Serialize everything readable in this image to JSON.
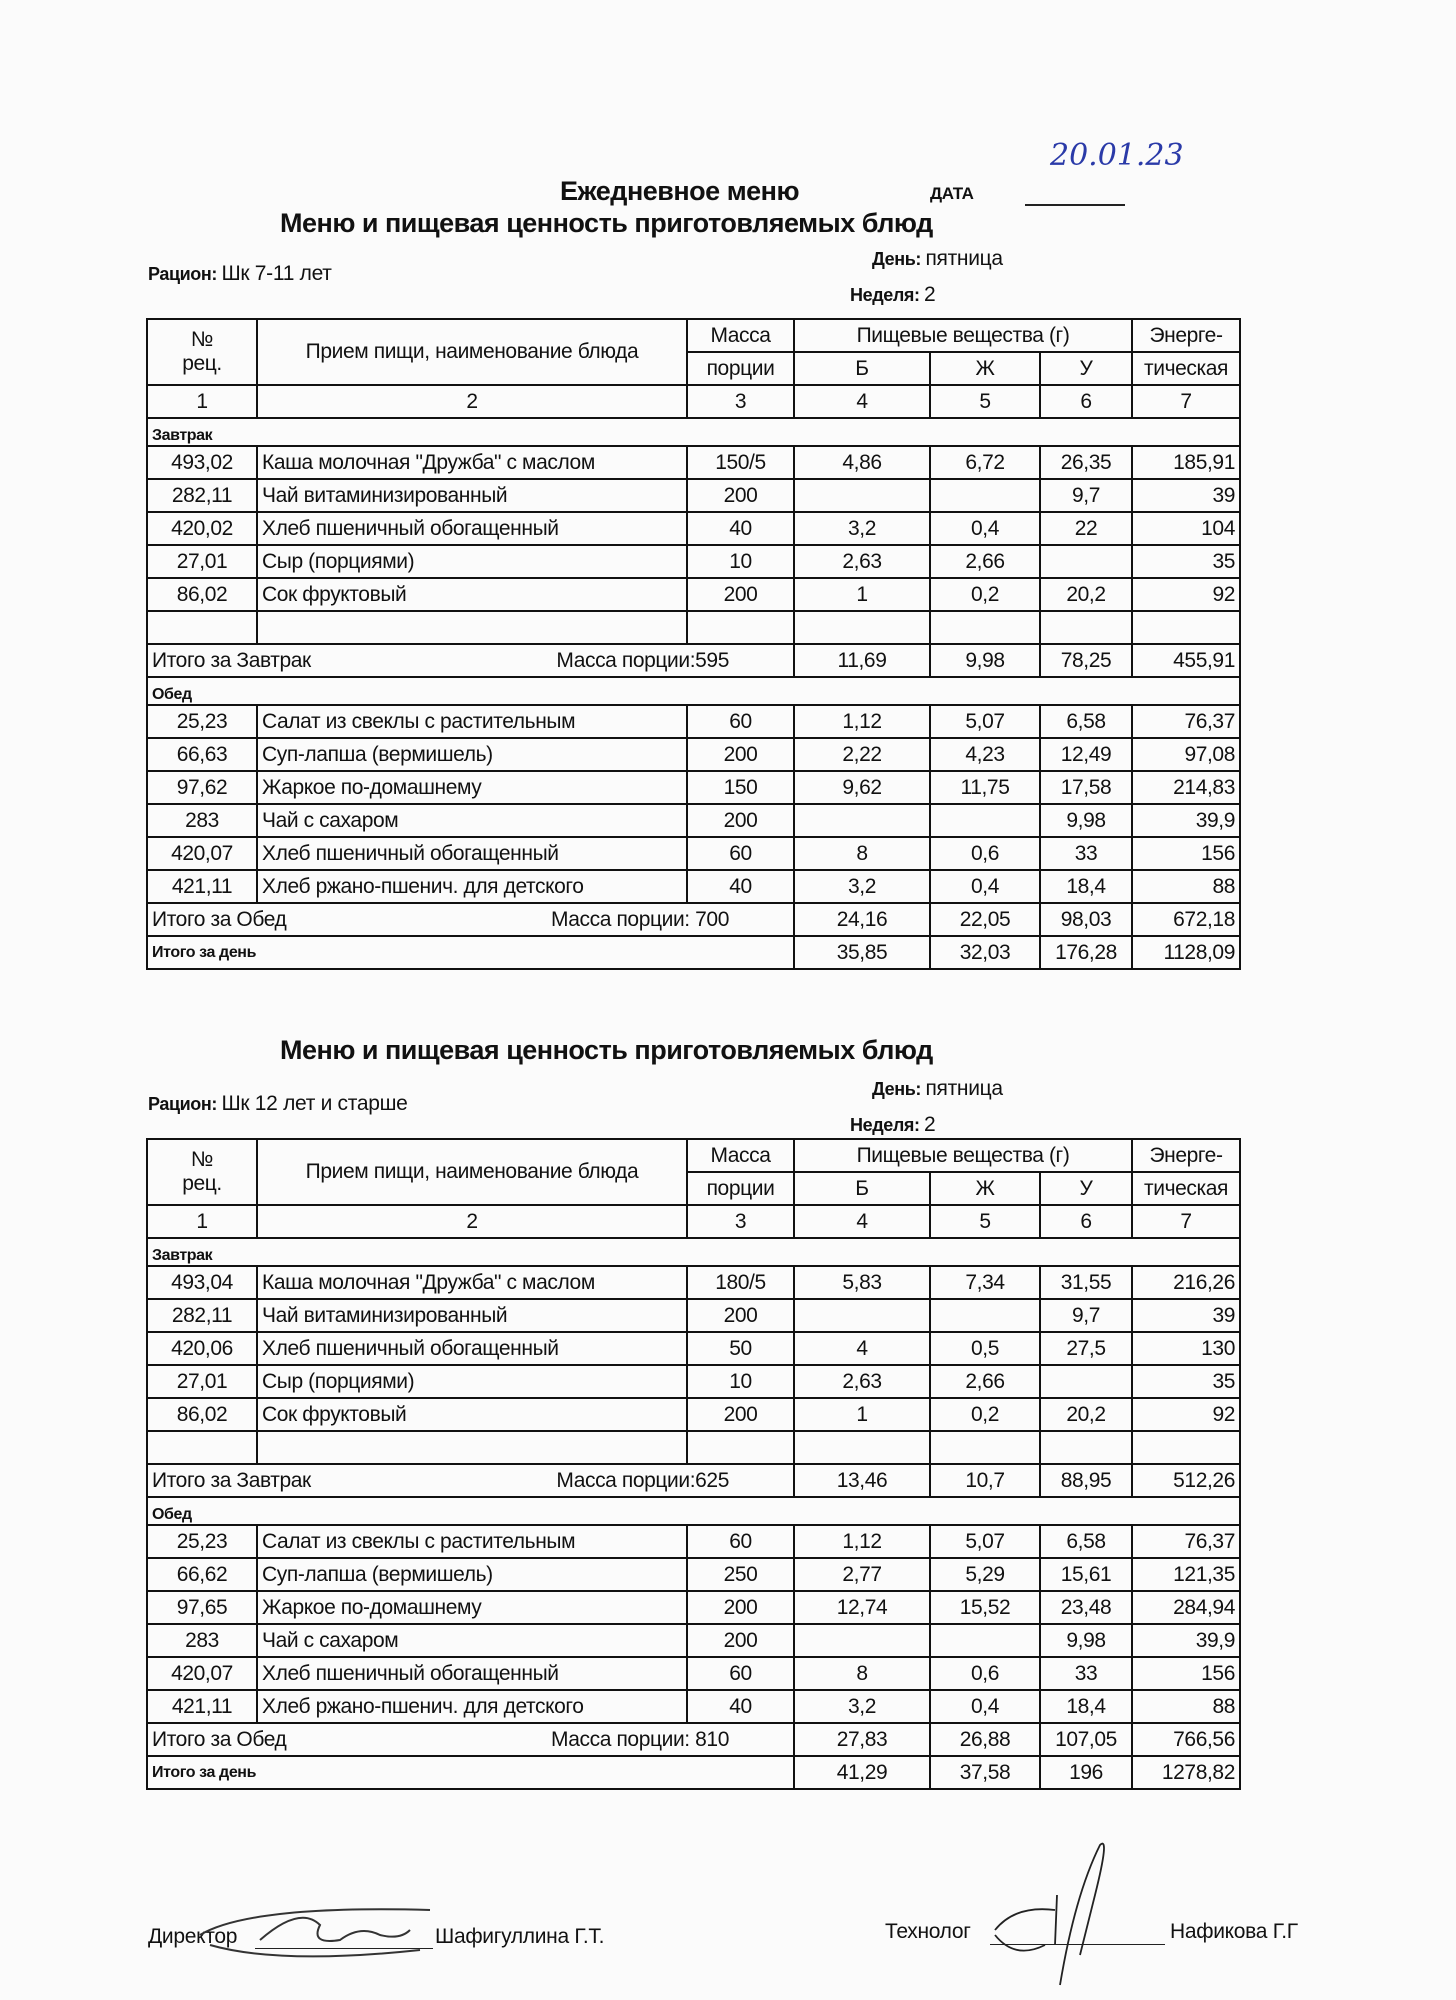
{
  "header": {
    "title": "Ежедневное меню",
    "date_label": "ДАТА",
    "date_value": "20.01.23"
  },
  "columns": {
    "num": "№",
    "rec": "рец.",
    "name": "Прием пищи, наименование блюда",
    "mass1": "Масса",
    "mass2": "порции",
    "nutrients": "Пищевые вещества (г)",
    "b": "Б",
    "zh": "Ж",
    "u": "У",
    "energy1": "Энерге-",
    "energy2": "тическая",
    "numbers": [
      "1",
      "2",
      "3",
      "4",
      "5",
      "6",
      "7"
    ]
  },
  "sections": [
    {
      "subtitle": "Меню и пищевая ценность приготовляемых блюд",
      "ration_label": "Рацион:",
      "ration_value": "Шк 7-11 лет",
      "day_label": "День:",
      "day_value": "пятница",
      "week_label": "Неделя:",
      "week_value": "2",
      "meals": [
        {
          "name": "Завтрак",
          "rows": [
            [
              "493,02",
              "Каша молочная \"Дружба\" с маслом",
              "150/5",
              "4,86",
              "6,72",
              "26,35",
              "185,91"
            ],
            [
              "282,11",
              "Чай витаминизированный",
              "200",
              "",
              "",
              "9,7",
              "39"
            ],
            [
              "420,02",
              "Хлеб пшеничный обогащенный",
              "40",
              "3,2",
              "0,4",
              "22",
              "104"
            ],
            [
              "27,01",
              "Сыр (порциями)",
              "10",
              "2,63",
              "2,66",
              "",
              "35"
            ],
            [
              "86,02",
              "Сок фруктовый",
              "200",
              "1",
              "0,2",
              "20,2",
              "92"
            ],
            [
              "",
              "",
              "",
              "",
              "",
              "",
              ""
            ]
          ],
          "total_label": "Итого за Завтрак",
          "total_mass": "Масса порции:595",
          "totals": [
            "11,69",
            "9,98",
            "78,25",
            "455,91"
          ]
        },
        {
          "name": "Обед",
          "rows": [
            [
              "25,23",
              "Салат из свеклы с растительным",
              "60",
              "1,12",
              "5,07",
              "6,58",
              "76,37"
            ],
            [
              "66,63",
              "Суп-лапша (вермишель)",
              "200",
              "2,22",
              "4,23",
              "12,49",
              "97,08"
            ],
            [
              "97,62",
              "Жаркое по-домашнему",
              "150",
              "9,62",
              "11,75",
              "17,58",
              "214,83"
            ],
            [
              "283",
              "Чай с сахаром",
              "200",
              "",
              "",
              "9,98",
              "39,9"
            ],
            [
              "420,07",
              "Хлеб пшеничный обогащенный",
              "60",
              "8",
              "0,6",
              "33",
              "156"
            ],
            [
              "421,11",
              "Хлеб ржано-пшенич. для детского",
              "40",
              "3,2",
              "0,4",
              "18,4",
              "88"
            ]
          ],
          "total_label": "Итого за Обед",
          "total_mass": "Масса порции: 700",
          "totals": [
            "24,16",
            "22,05",
            "98,03",
            "672,18"
          ]
        }
      ],
      "day_total_label": "Итого за день",
      "day_totals": [
        "35,85",
        "32,03",
        "176,28",
        "1128,09"
      ]
    },
    {
      "subtitle": "Меню и пищевая ценность приготовляемых блюд",
      "ration_label": "Рацион:",
      "ration_value": "Шк 12 лет и старше",
      "day_label": "День:",
      "day_value": "пятница",
      "week_label": "Неделя:",
      "week_value": "2",
      "meals": [
        {
          "name": "Завтрак",
          "rows": [
            [
              "493,04",
              "Каша молочная \"Дружба\" с маслом",
              "180/5",
              "5,83",
              "7,34",
              "31,55",
              "216,26"
            ],
            [
              "282,11",
              "Чай витаминизированный",
              "200",
              "",
              "",
              "9,7",
              "39"
            ],
            [
              "420,06",
              "Хлеб пшеничный обогащенный",
              "50",
              "4",
              "0,5",
              "27,5",
              "130"
            ],
            [
              "27,01",
              "Сыр (порциями)",
              "10",
              "2,63",
              "2,66",
              "",
              "35"
            ],
            [
              "86,02",
              "Сок фруктовый",
              "200",
              "1",
              "0,2",
              "20,2",
              "92"
            ],
            [
              "",
              "",
              "",
              "",
              "",
              "",
              ""
            ]
          ],
          "total_label": "Итого за Завтрак",
          "total_mass": "Масса порции:625",
          "totals": [
            "13,46",
            "10,7",
            "88,95",
            "512,26"
          ]
        },
        {
          "name": "Обед",
          "rows": [
            [
              "25,23",
              "Салат из свеклы с растительным",
              "60",
              "1,12",
              "5,07",
              "6,58",
              "76,37"
            ],
            [
              "66,62",
              "Суп-лапша (вермишель)",
              "250",
              "2,77",
              "5,29",
              "15,61",
              "121,35"
            ],
            [
              "97,65",
              "Жаркое по-домашнему",
              "200",
              "12,74",
              "15,52",
              "23,48",
              "284,94"
            ],
            [
              "283",
              "Чай с сахаром",
              "200",
              "",
              "",
              "9,98",
              "39,9"
            ],
            [
              "420,07",
              "Хлеб пшеничный обогащенный",
              "60",
              "8",
              "0,6",
              "33",
              "156"
            ],
            [
              "421,11",
              "Хлеб ржано-пшенич. для детского",
              "40",
              "3,2",
              "0,4",
              "18,4",
              "88"
            ]
          ],
          "total_label": "Итого за Обед",
          "total_mass": "Масса порции: 810",
          "totals": [
            "27,83",
            "26,88",
            "107,05",
            "766,56"
          ]
        }
      ],
      "day_total_label": "Итого за день",
      "day_totals": [
        "41,29",
        "37,58",
        "196",
        "1278,82"
      ]
    }
  ],
  "footer": {
    "director_label": "Директор",
    "director_name": "Шафигуллина Г.Т.",
    "technologist_label": "Технолог",
    "technologist_name": "Нафикова Г.Г"
  }
}
